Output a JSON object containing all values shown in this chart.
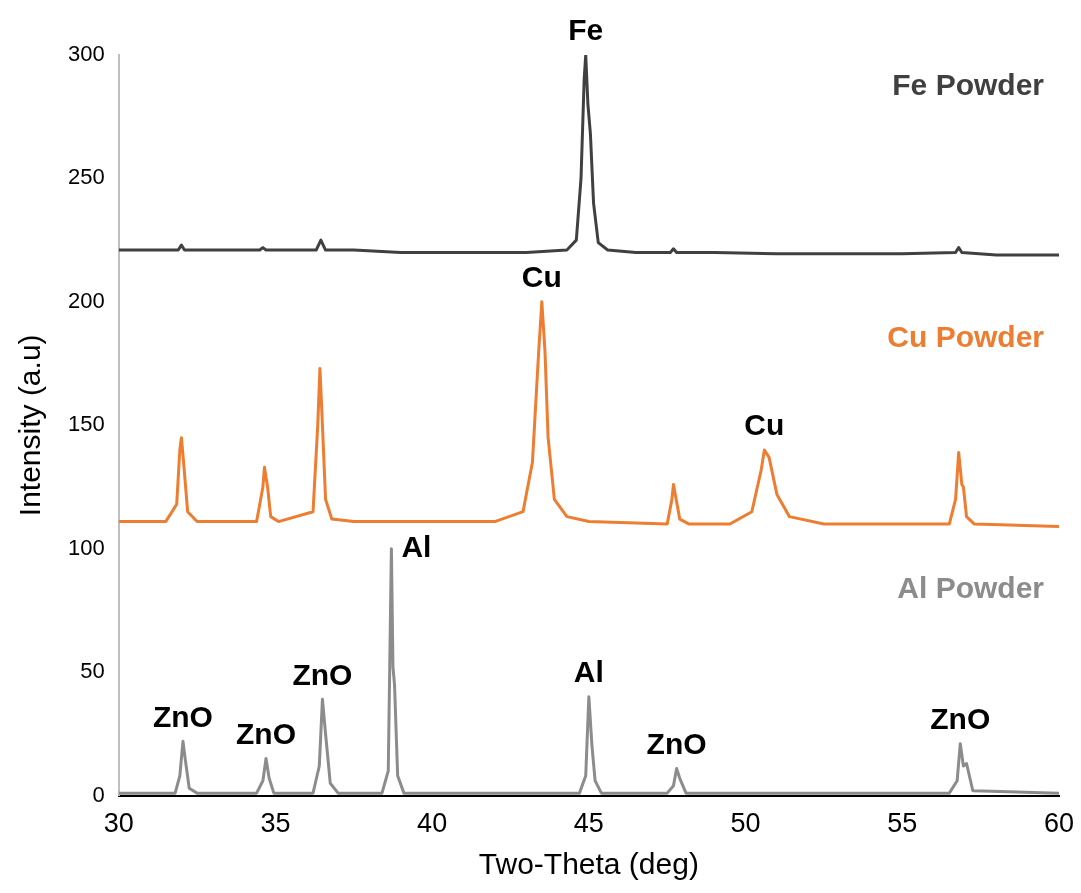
{
  "chart_data": {
    "type": "line",
    "xlabel": "Two-Theta (deg)",
    "ylabel": "Intensity (a.u)",
    "xlim": [
      30,
      60
    ],
    "xticks": [
      30,
      35,
      40,
      45,
      50,
      55,
      60
    ],
    "ylim": [
      0,
      300
    ],
    "yticks": [
      0,
      50,
      100,
      150,
      200,
      250,
      300
    ],
    "grid": false,
    "legend": false,
    "marker": "none",
    "line_style": "solid",
    "series": [
      {
        "name": "Fe Powder",
        "color": "#404040",
        "x": [
          30,
          31,
          31.9,
          32.0,
          32.1,
          33,
          34.5,
          34.6,
          34.7,
          35.5,
          36.3,
          36.45,
          36.6,
          37.5,
          39,
          41,
          43,
          44.3,
          44.6,
          44.75,
          44.85,
          44.9,
          44.97,
          45.05,
          45.15,
          45.3,
          45.6,
          46.5,
          47.6,
          47.7,
          47.8,
          49,
          51,
          53,
          55,
          56.7,
          56.8,
          56.9,
          58,
          60
        ],
        "values": [
          221,
          221,
          221,
          223,
          221,
          221,
          221,
          222,
          221,
          221,
          221,
          225,
          221,
          221,
          220,
          220,
          220,
          221,
          225,
          250,
          290,
          300,
          280,
          268,
          240,
          224,
          221,
          220,
          220,
          221.5,
          220,
          220,
          219.5,
          219.5,
          219.5,
          220,
          222,
          220,
          219,
          219
        ]
      },
      {
        "name": "Cu Powder",
        "color": "#ed7d31",
        "x": [
          30,
          31.5,
          31.85,
          31.95,
          32.0,
          32.05,
          32.2,
          32.5,
          34.4,
          34.6,
          34.65,
          34.75,
          34.85,
          35.1,
          36.2,
          36.35,
          36.42,
          36.5,
          36.6,
          36.8,
          37.5,
          40,
          42,
          42.9,
          43.2,
          43.4,
          43.5,
          43.6,
          43.7,
          43.9,
          44.3,
          45,
          47.5,
          47.65,
          47.7,
          47.8,
          47.9,
          48.2,
          49.5,
          50.2,
          50.5,
          50.6,
          50.75,
          51.0,
          51.4,
          52.5,
          56.5,
          56.7,
          56.8,
          56.9,
          56.95,
          57.05,
          57.3,
          60
        ],
        "values": [
          111,
          111,
          118,
          140,
          145,
          138,
          115,
          111,
          111,
          125,
          133,
          125,
          113,
          111,
          115,
          150,
          173,
          150,
          120,
          112,
          111,
          111,
          111,
          115,
          135,
          180,
          200,
          180,
          145,
          120,
          113,
          111,
          110,
          120,
          126,
          119,
          112,
          110,
          110,
          115,
          132,
          140,
          137,
          122,
          113,
          110,
          110,
          120,
          139,
          126,
          125,
          113,
          110,
          109
        ]
      },
      {
        "name": "Al Powder",
        "color": "#8c8c8c",
        "x": [
          30,
          31.8,
          31.95,
          32.05,
          32.12,
          32.25,
          32.5,
          34.4,
          34.6,
          34.7,
          34.8,
          34.95,
          36.2,
          36.4,
          36.5,
          36.6,
          36.75,
          37,
          38.4,
          38.6,
          38.7,
          38.75,
          38.8,
          38.9,
          39.1,
          44.7,
          44.9,
          45.0,
          45.1,
          45.2,
          45.4,
          47.5,
          47.7,
          47.8,
          47.9,
          48.1,
          56.5,
          56.75,
          56.85,
          56.95,
          57.05,
          57.25,
          60
        ],
        "values": [
          1,
          1,
          8,
          22,
          15,
          3,
          1,
          1,
          6,
          15,
          7,
          1,
          1,
          12,
          39,
          25,
          5,
          1,
          1,
          10,
          100,
          52,
          45,
          8,
          1,
          1,
          8,
          40,
          20,
          6,
          1,
          1,
          4,
          11,
          7,
          1,
          1,
          6,
          21,
          12,
          13,
          2,
          1
        ]
      }
    ],
    "annotations": [
      {
        "text": "Fe",
        "x": 44.9,
        "y": 300
      },
      {
        "text": "Cu",
        "x": 43.5,
        "y": 200
      },
      {
        "text": "Cu",
        "x": 50.6,
        "y": 140
      },
      {
        "text": "Al",
        "x": 38.7,
        "y": 100
      },
      {
        "text": "Al",
        "x": 45.0,
        "y": 40
      },
      {
        "text": "ZnO",
        "x": 32.05,
        "y": 22
      },
      {
        "text": "ZnO",
        "x": 34.7,
        "y": 15
      },
      {
        "text": "ZnO",
        "x": 36.5,
        "y": 39
      },
      {
        "text": "ZnO",
        "x": 47.8,
        "y": 11
      },
      {
        "text": "ZnO",
        "x": 56.85,
        "y": 21
      }
    ]
  }
}
